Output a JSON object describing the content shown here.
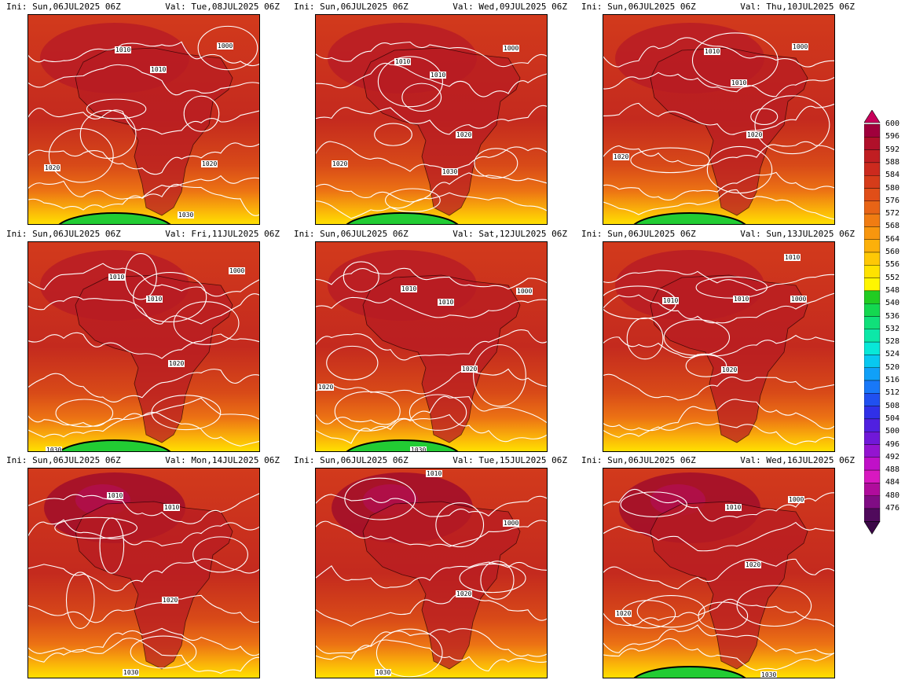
{
  "panels": [
    {
      "ini": "Ini: Sun,06JUL2025 06Z",
      "val": "Val: Tue,08JUL2025 06Z",
      "labels": [
        "1010",
        "1010",
        "1000",
        "1020",
        "1020",
        "1030"
      ],
      "south_green": true,
      "north_dark": false
    },
    {
      "ini": "Ini: Sun,06JUL2025 06Z",
      "val": "Val: Wed,09JUL2025 06Z",
      "labels": [
        "1010",
        "1010",
        "1000",
        "1020",
        "1020",
        "1030"
      ],
      "south_green": true,
      "north_dark": false
    },
    {
      "ini": "Ini: Sun,06JUL2025 06Z",
      "val": "Val: Thu,10JUL2025 06Z",
      "labels": [
        "1010",
        "1010",
        "1000",
        "1020",
        "1020"
      ],
      "south_green": true,
      "north_dark": false
    },
    {
      "ini": "Ini: Sun,06JUL2025 06Z",
      "val": "Val: Fri,11JUL2025 06Z",
      "labels": [
        "1010",
        "1010",
        "1000",
        "1020",
        "1030"
      ],
      "south_green": true,
      "north_dark": false
    },
    {
      "ini": "Ini: Sun,06JUL2025 06Z",
      "val": "Val: Sat,12JUL2025 06Z",
      "labels": [
        "1010",
        "1010",
        "1000",
        "1020",
        "1020",
        "1030"
      ],
      "south_green": true,
      "north_dark": false
    },
    {
      "ini": "Ini: Sun,06JUL2025 06Z",
      "val": "Val: Sun,13JUL2025 06Z",
      "labels": [
        "1010",
        "1010",
        "1010",
        "1000",
        "1020"
      ],
      "south_green": false,
      "north_dark": false
    },
    {
      "ini": "Ini: Sun,06JUL2025 06Z",
      "val": "Val: Mon,14JUL2025 06Z",
      "labels": [
        "1010",
        "1010",
        "1020",
        "1030"
      ],
      "south_green": false,
      "north_dark": true
    },
    {
      "ini": "Ini: Sun,06JUL2025 06Z",
      "val": "Val: Tue,15JUL2025 06Z",
      "labels": [
        "1010",
        "1000",
        "1020",
        "1030"
      ],
      "south_green": false,
      "north_dark": true
    },
    {
      "ini": "Ini: Sun,06JUL2025 06Z",
      "val": "Val: Wed,16JUL2025 06Z",
      "labels": [
        "1010",
        "1000",
        "1020",
        "1020",
        "1030"
      ],
      "south_green": true,
      "north_dark": true
    }
  ],
  "colorbar": {
    "levels": [
      "600",
      "596",
      "592",
      "588",
      "584",
      "580",
      "576",
      "572",
      "568",
      "564",
      "560",
      "556",
      "552",
      "548",
      "540",
      "536",
      "532",
      "528",
      "524",
      "520",
      "516",
      "512",
      "508",
      "504",
      "500",
      "496",
      "492",
      "488",
      "484",
      "480",
      "476"
    ],
    "colors": [
      "#a0003c",
      "#b0102a",
      "#c01e22",
      "#cc2a1e",
      "#d63c1a",
      "#e04e18",
      "#e86416",
      "#f07c12",
      "#f8960e",
      "#fcb00a",
      "#fec806",
      "#ffe200",
      "#fff600",
      "#22cc22",
      "#14d850",
      "#10e07a",
      "#0ce8a8",
      "#08e8d8",
      "#08c8f0",
      "#10a0f8",
      "#1878f8",
      "#2050f0",
      "#3030e8",
      "#5020e0",
      "#7018d8",
      "#9414d0",
      "#c010c8",
      "#d818c0",
      "#b00c9c",
      "#800c84",
      "#500a5c"
    ],
    "top_color": "#c8005a",
    "bottom_color": "#3c0848"
  }
}
